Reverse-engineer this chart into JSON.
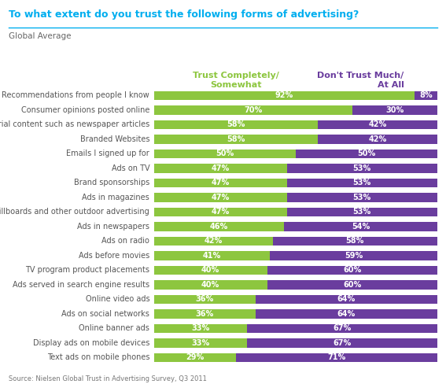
{
  "title": "To what extent do you trust the following forms of advertising?",
  "subtitle": "Global Average",
  "col1_header": "Trust Completely/\nSomewhat",
  "col2_header": "Don't Trust Much/\nAt All",
  "source": "Source: Nielsen Global Trust in Advertising Survey, Q3 2011",
  "categories": [
    "Recommendations from people I know",
    "Consumer opinions posted online",
    "Editorial content such as newspaper articles",
    "Branded Websites",
    "Emails I signed up for",
    "Ads on TV",
    "Brand sponsorships",
    "Ads in magazines",
    "Billboards and other outdoor advertising",
    "Ads in newspapers",
    "Ads on radio",
    "Ads before movies",
    "TV program product placements",
    "Ads served in search engine results",
    "Online video ads",
    "Ads on social networks",
    "Online banner ads",
    "Display ads on mobile devices",
    "Text ads on mobile phones"
  ],
  "trust_values": [
    92,
    70,
    58,
    58,
    50,
    47,
    47,
    47,
    47,
    46,
    42,
    41,
    40,
    40,
    36,
    36,
    33,
    33,
    29
  ],
  "distrust_values": [
    8,
    30,
    42,
    42,
    50,
    53,
    53,
    53,
    53,
    54,
    58,
    59,
    60,
    60,
    64,
    64,
    67,
    67,
    71
  ],
  "trust_color": "#8dc63f",
  "distrust_color": "#6a3d9e",
  "title_color": "#00aeef",
  "col1_header_color": "#8dc63f",
  "col2_header_color": "#6a3d9e",
  "bar_height": 0.62,
  "background_color": "#ffffff",
  "label_fontsize": 7.0,
  "category_fontsize": 7.0,
  "title_fontsize": 9.0,
  "header_fontsize": 8.0,
  "source_fontsize": 6.0,
  "subtitle_fontsize": 7.5
}
